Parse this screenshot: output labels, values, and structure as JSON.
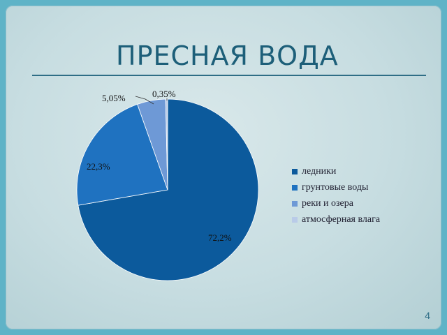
{
  "slide": {
    "title": "ПРЕСНАЯ ВОДА",
    "page_number": "4"
  },
  "chart_data": {
    "type": "pie",
    "title": "",
    "categories": [
      "ледники",
      "грунтовые воды",
      "реки и озера",
      "атмосферная влага"
    ],
    "values": [
      72.2,
      22.3,
      5.05,
      0.35
    ],
    "labels": [
      "72,2%",
      "22,3%",
      "5,05%",
      "0,35%"
    ],
    "colors": [
      "#0c5a9c",
      "#1f72c0",
      "#6e99d6",
      "#b9cbe8"
    ],
    "legend": "right"
  }
}
